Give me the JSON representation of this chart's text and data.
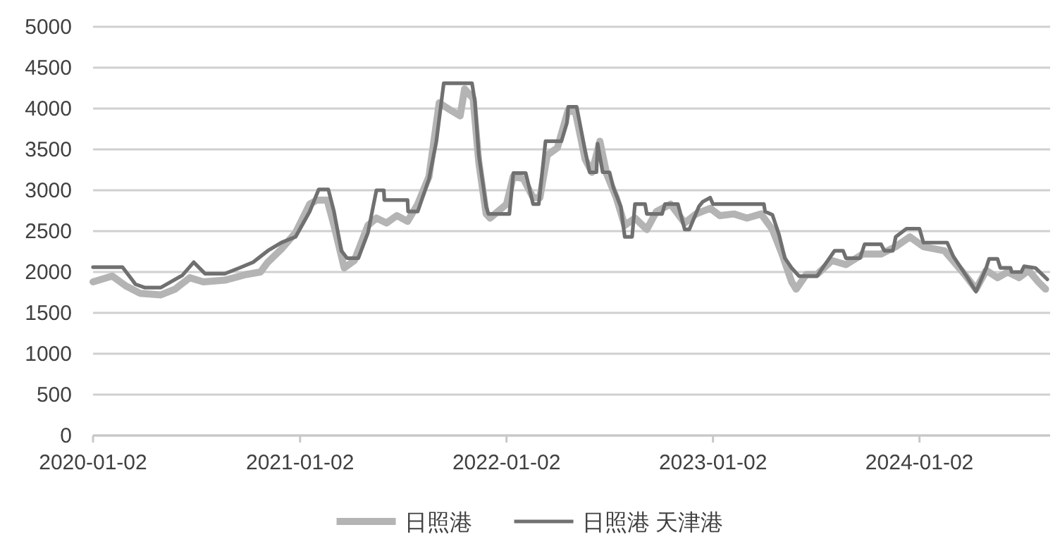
{
  "chart_data": {
    "type": "line",
    "xlim": [
      "2020-01-02",
      "2024-08-20"
    ],
    "ylim": [
      0,
      5000
    ],
    "xticks": [
      "2020-01-02",
      "2021-01-02",
      "2022-01-02",
      "2023-01-02",
      "2024-01-02"
    ],
    "yticks": [
      0,
      500,
      1000,
      1500,
      2000,
      2500,
      3000,
      3500,
      4000,
      4500,
      5000
    ],
    "grid": "y",
    "legend": "bottom",
    "line_style": "solid",
    "series": [
      {
        "name": "日照港",
        "color": "#b4b4b4",
        "x": [
          "2020-01-02",
          "2020-02-05",
          "2020-02-29",
          "2020-03-25",
          "2020-05-01",
          "2020-05-26",
          "2020-06-21",
          "2020-07-15",
          "2020-08-22",
          "2020-09-29",
          "2020-10-24",
          "2020-11-06",
          "2020-11-30",
          "2020-12-25",
          "2021-01-19",
          "2021-02-01",
          "2021-02-19",
          "2021-03-03",
          "2021-03-21",
          "2021-04-08",
          "2021-05-02",
          "2021-05-17",
          "2021-06-04",
          "2021-06-22",
          "2021-07-11",
          "2021-07-29",
          "2021-08-18",
          "2021-09-05",
          "2021-09-25",
          "2021-10-12",
          "2021-10-20",
          "2021-11-04",
          "2021-11-14",
          "2021-11-27",
          "2021-12-04",
          "2022-01-02",
          "2022-01-14",
          "2022-02-01",
          "2022-02-18",
          "2022-03-02",
          "2022-03-15",
          "2022-04-02",
          "2022-04-21",
          "2022-05-04",
          "2022-05-21",
          "2022-06-02",
          "2022-06-16",
          "2022-06-28",
          "2022-07-15",
          "2022-07-30",
          "2022-08-17",
          "2022-09-07",
          "2022-09-24",
          "2022-10-19",
          "2022-11-13",
          "2022-12-03",
          "2022-12-28",
          "2023-01-14",
          "2023-02-08",
          "2023-03-03",
          "2023-03-28",
          "2023-04-17",
          "2023-05-04",
          "2023-05-21",
          "2023-05-29",
          "2023-06-16",
          "2023-07-05",
          "2023-07-31",
          "2023-08-25",
          "2023-09-24",
          "2023-10-26",
          "2023-11-21",
          "2023-12-16",
          "2024-01-09",
          "2024-02-15",
          "2024-03-22",
          "2024-04-11",
          "2024-04-29",
          "2024-05-19",
          "2024-06-06",
          "2024-06-26",
          "2024-07-13",
          "2024-07-30",
          "2024-08-12"
        ],
        "values": [
          1880,
          1950,
          1830,
          1740,
          1720,
          1790,
          1930,
          1880,
          1900,
          1970,
          2000,
          2120,
          2280,
          2480,
          2830,
          2880,
          2880,
          2570,
          2050,
          2140,
          2570,
          2660,
          2600,
          2690,
          2620,
          2830,
          3170,
          4070,
          3980,
          3910,
          4240,
          4120,
          3340,
          2710,
          2660,
          2830,
          3170,
          3140,
          2910,
          2910,
          3430,
          3520,
          3980,
          3950,
          3380,
          3220,
          3600,
          3200,
          2910,
          2570,
          2660,
          2520,
          2740,
          2830,
          2600,
          2710,
          2780,
          2690,
          2710,
          2660,
          2710,
          2520,
          2220,
          1880,
          1790,
          1970,
          1970,
          2140,
          2090,
          2220,
          2220,
          2310,
          2430,
          2310,
          2260,
          1970,
          1790,
          2020,
          1930,
          2000,
          1930,
          2020,
          1880,
          1790
        ]
      },
      {
        "name": "日照港 天津港",
        "color": "#707070",
        "x": [
          "2020-01-02",
          "2020-02-23",
          "2020-03-17",
          "2020-04-02",
          "2020-05-01",
          "2020-06-08",
          "2020-06-28",
          "2020-07-18",
          "2020-08-22",
          "2020-09-17",
          "2020-10-11",
          "2020-11-06",
          "2020-11-30",
          "2020-12-25",
          "2021-01-19",
          "2021-02-04",
          "2021-02-21",
          "2021-03-03",
          "2021-03-16",
          "2021-03-26",
          "2021-04-15",
          "2021-05-02",
          "2021-05-17",
          "2021-05-30",
          "2021-05-31",
          "2021-07-11",
          "2021-07-12",
          "2021-07-29",
          "2021-08-18",
          "2021-08-31",
          "2021-09-13",
          "2021-11-02",
          "2021-11-07",
          "2021-11-14",
          "2021-11-27",
          "2021-12-01",
          "2022-01-07",
          "2022-01-14",
          "2022-02-05",
          "2022-02-18",
          "2022-02-28",
          "2022-03-12",
          "2022-04-09",
          "2022-04-19",
          "2022-04-21",
          "2022-05-06",
          "2022-05-21",
          "2022-05-29",
          "2022-06-10",
          "2022-06-12",
          "2022-06-21",
          "2022-07-03",
          "2022-07-10",
          "2022-07-23",
          "2022-07-30",
          "2022-08-12",
          "2022-08-17",
          "2022-09-04",
          "2022-09-07",
          "2022-10-04",
          "2022-10-09",
          "2022-11-01",
          "2022-11-13",
          "2022-11-21",
          "2022-12-08",
          "2022-12-15",
          "2022-12-28",
          "2023-01-02",
          "2023-04-02",
          "2023-04-04",
          "2023-04-17",
          "2023-04-29",
          "2023-05-09",
          "2023-05-21",
          "2023-06-03",
          "2023-07-05",
          "2023-08-05",
          "2023-08-20",
          "2023-08-25",
          "2023-09-19",
          "2023-09-27",
          "2023-10-26",
          "2023-11-01",
          "2023-11-16",
          "2023-11-21",
          "2023-12-10",
          "2024-01-02",
          "2024-01-09",
          "2024-02-20",
          "2024-03-02",
          "2024-03-27",
          "2024-04-11",
          "2024-04-29",
          "2024-05-04",
          "2024-05-19",
          "2024-05-24",
          "2024-06-11",
          "2024-06-13",
          "2024-06-30",
          "2024-07-05",
          "2024-07-25",
          "2024-08-15"
        ],
        "values": [
          2060,
          2060,
          1850,
          1810,
          1810,
          1960,
          2120,
          1980,
          1980,
          2050,
          2120,
          2260,
          2360,
          2430,
          2740,
          3010,
          3010,
          2740,
          2260,
          2170,
          2170,
          2480,
          3000,
          3000,
          2880,
          2880,
          2740,
          2740,
          3140,
          3600,
          4310,
          4310,
          4090,
          3430,
          2800,
          2710,
          2710,
          3210,
          3210,
          2830,
          2830,
          3600,
          3600,
          3830,
          4020,
          4020,
          3480,
          3220,
          3220,
          3570,
          3220,
          3220,
          3030,
          2800,
          2430,
          2430,
          2830,
          2830,
          2710,
          2710,
          2830,
          2830,
          2520,
          2520,
          2800,
          2860,
          2910,
          2830,
          2830,
          2740,
          2700,
          2450,
          2170,
          2050,
          1950,
          1950,
          2260,
          2260,
          2170,
          2170,
          2340,
          2340,
          2260,
          2260,
          2430,
          2530,
          2530,
          2360,
          2360,
          2190,
          1930,
          1760,
          2050,
          2160,
          2160,
          2050,
          2050,
          2000,
          2000,
          2070,
          2050,
          1910
        ]
      }
    ]
  }
}
